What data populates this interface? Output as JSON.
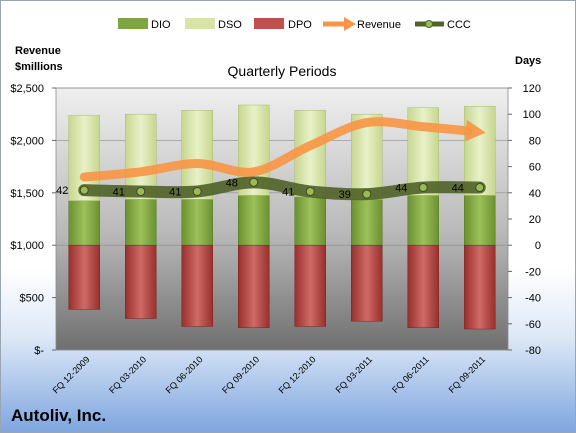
{
  "company": "Autoliv, Inc.",
  "chart_data": {
    "type": "bar",
    "title": "Quarterly Periods",
    "ylabel_left": "Revenue\n$millions",
    "ylabel_right": "Days",
    "left_axis": {
      "min": 0,
      "max": 2500,
      "ticks": [
        0,
        500,
        1000,
        1500,
        2000,
        2500
      ],
      "tick_labels": [
        "$-",
        "$500",
        "$1,000",
        "$1,500",
        "$2,000",
        "$2,500"
      ]
    },
    "right_axis": {
      "min": -80,
      "max": 120,
      "ticks": [
        -80,
        -60,
        -40,
        -20,
        0,
        20,
        40,
        60,
        80,
        100,
        120
      ]
    },
    "legend_position": "top",
    "categories": [
      "FQ 12-2009",
      "FQ 03-2010",
      "FQ 06-2010",
      "FQ 09-2010",
      "FQ 12-2010",
      "FQ 03-2011",
      "FQ 06-2011",
      "FQ 09-2011"
    ],
    "series": [
      {
        "name": "DIO",
        "type": "stacked-bar",
        "axis": "right",
        "color": "#7fa540",
        "values": [
          34,
          35,
          35,
          38,
          37,
          35,
          38,
          38
        ]
      },
      {
        "name": "DSO",
        "type": "stacked-bar",
        "axis": "right",
        "color": "#d7e4a4",
        "values": [
          65,
          65,
          68,
          69,
          66,
          65,
          67,
          68
        ]
      },
      {
        "name": "DPO",
        "type": "stacked-bar",
        "axis": "right",
        "color": "#c0504d",
        "values": [
          -49,
          -56,
          -62,
          -63,
          -62,
          -58,
          -63,
          -64
        ]
      },
      {
        "name": "Revenue",
        "type": "line",
        "axis": "left",
        "color": "#f79646",
        "values": [
          1650,
          1700,
          1780,
          1700,
          1950,
          2170,
          2130,
          2080
        ]
      },
      {
        "name": "CCC",
        "type": "line",
        "axis": "right",
        "color": "#4f6228",
        "values": [
          42,
          41,
          41,
          48,
          41,
          39,
          44,
          44
        ],
        "data_labels": [
          "42",
          "41",
          "41",
          "48",
          "41",
          "39",
          "44",
          "44"
        ]
      }
    ]
  }
}
